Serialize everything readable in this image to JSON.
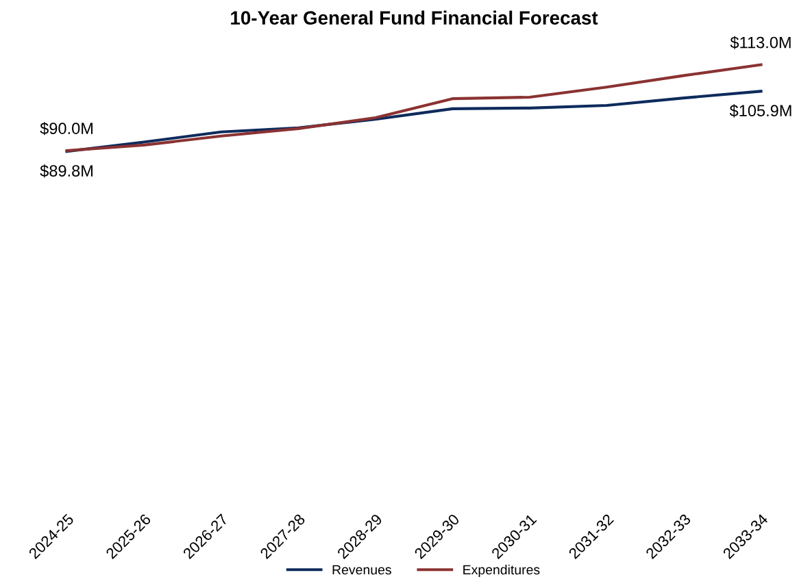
{
  "chart_data": {
    "type": "line",
    "title": "10-Year General Fund Financial Forecast",
    "categories": [
      "2024-25",
      "2025-26",
      "2026-27",
      "2027-28",
      "2028-29",
      "2029-30",
      "2030-31",
      "2031-32",
      "2032-33",
      "2033-34"
    ],
    "series": [
      {
        "name": "Revenues",
        "color": "#0e2b5c",
        "values": [
          89.8,
          92.3,
          95.0,
          96.1,
          98.4,
          101.2,
          101.4,
          102.1,
          104.1,
          105.9
        ],
        "value_labels": [
          "$89.8M",
          null,
          null,
          null,
          null,
          null,
          null,
          null,
          null,
          "$105.9M"
        ]
      },
      {
        "name": "Expenditures",
        "color": "#8b3232",
        "values": [
          90.0,
          91.5,
          93.9,
          95.9,
          98.8,
          103.9,
          104.3,
          107.0,
          110.1,
          113.0
        ],
        "value_labels": [
          "$90.0M",
          null,
          null,
          null,
          null,
          null,
          null,
          null,
          null,
          "$113.0M"
        ]
      }
    ],
    "grid": false,
    "legend": "bottom",
    "marker": "none",
    "line_style": "solid"
  }
}
